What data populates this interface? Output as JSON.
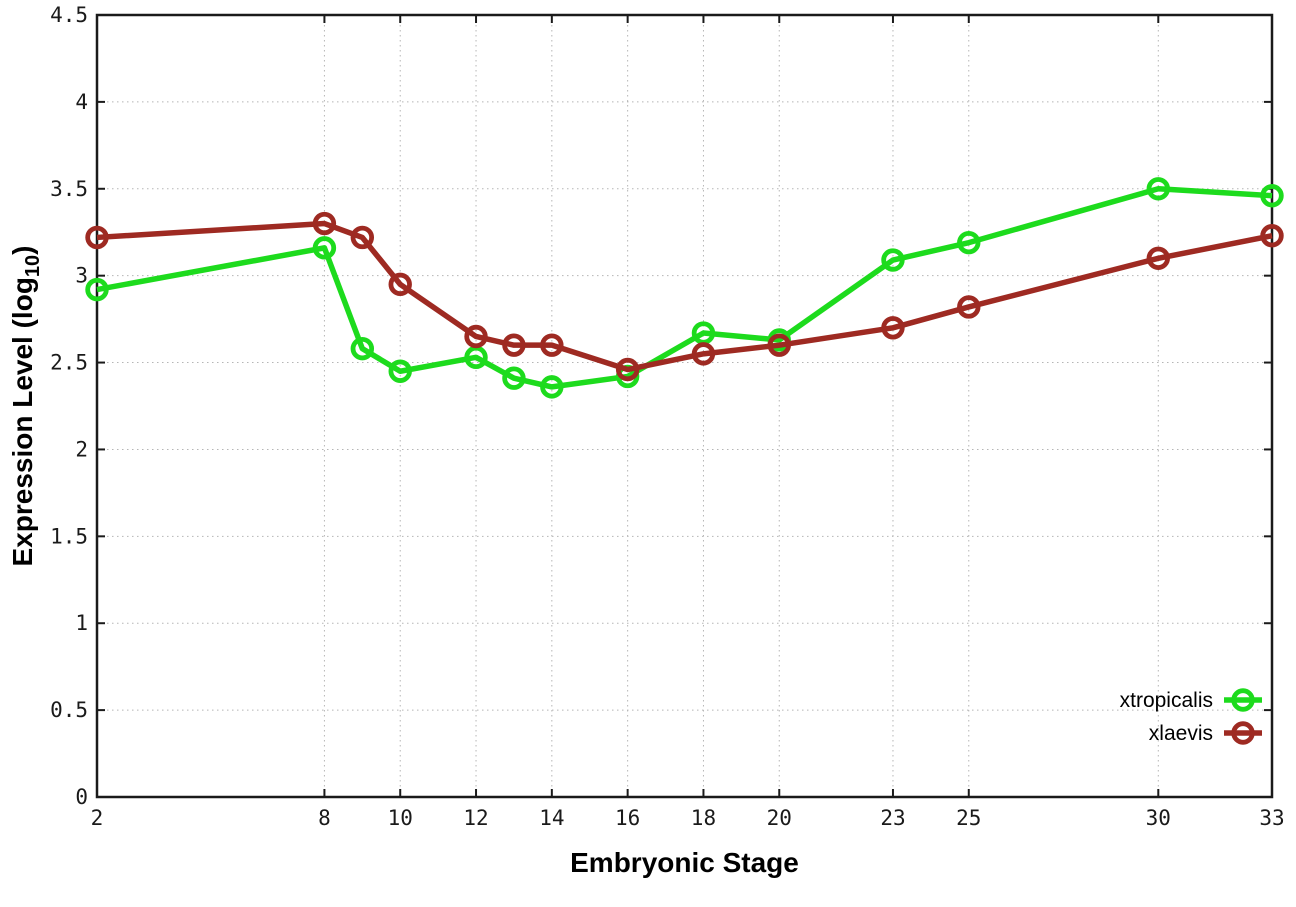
{
  "chart_data": {
    "type": "line",
    "title": "",
    "xlabel": "Embryonic Stage",
    "ylabel": "Expression Level (log10)",
    "ylabel_parts": {
      "main": "Expression Level (log",
      "sub": "10",
      "end": ")"
    },
    "x": [
      2,
      8,
      9,
      10,
      12,
      13,
      14,
      16,
      18,
      20,
      23,
      25,
      30,
      33
    ],
    "series": [
      {
        "name": "xtropicalis",
        "color": "#1DDB1D",
        "marker": "open-circle",
        "values": [
          2.92,
          3.16,
          2.58,
          2.45,
          2.53,
          2.41,
          2.36,
          2.42,
          2.67,
          2.63,
          3.09,
          3.19,
          3.5,
          3.46
        ]
      },
      {
        "name": "xlaevis",
        "color": "#9E2A22",
        "marker": "open-circle",
        "values": [
          3.22,
          3.3,
          3.22,
          2.95,
          2.65,
          2.6,
          2.6,
          2.46,
          2.55,
          2.6,
          2.7,
          2.82,
          3.1,
          3.23
        ]
      }
    ],
    "x_ticks": [
      2,
      8,
      10,
      12,
      14,
      16,
      18,
      20,
      23,
      25,
      30,
      33
    ],
    "x_tick_labels": [
      "2",
      "8",
      "10",
      "12",
      "14",
      "16",
      "18",
      "20",
      "23",
      "25",
      "30",
      "33"
    ],
    "y_ticks": [
      0,
      0.5,
      1,
      1.5,
      2,
      2.5,
      3,
      3.5,
      4,
      4.5
    ],
    "y_tick_labels": [
      "0",
      "0.5",
      "1",
      "1.5",
      "2",
      "2.5",
      "3",
      "3.5",
      "4",
      "4.5"
    ],
    "xlim": [
      2,
      33
    ],
    "ylim": [
      0,
      4.5
    ],
    "grid": true,
    "grid_style": "dotted",
    "legend_position": "bottom-right-inside",
    "colors": {
      "background": "#ffffff",
      "border": "#1a1a1a",
      "grid": "#b5b5b5",
      "text": "#000000"
    }
  }
}
